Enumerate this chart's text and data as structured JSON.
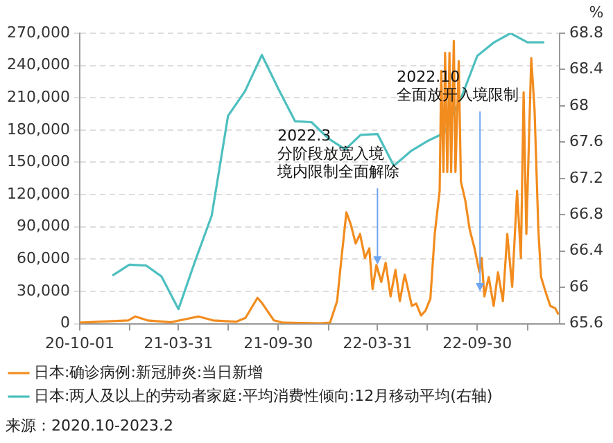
{
  "chart_data": {
    "type": "line",
    "y2label": "%",
    "xlim": [
      "2020-10-01",
      "2023-02-28"
    ],
    "xticks": [
      {
        "value": "2020-10-01",
        "label": "20-10-01"
      },
      {
        "value": "2020-12-31",
        "label": null
      },
      {
        "value": "2021-03-31",
        "label": "21-03-31"
      },
      {
        "value": "2021-06-30",
        "label": null
      },
      {
        "value": "2021-09-30",
        "label": "21-09-30"
      },
      {
        "value": "2021-12-31",
        "label": null
      },
      {
        "value": "2022-03-31",
        "label": "22-03-31"
      },
      {
        "value": "2022-06-30",
        "label": null
      },
      {
        "value": "2022-09-30",
        "label": "22-09-30"
      },
      {
        "value": "2022-12-31",
        "label": null
      }
    ],
    "ylim": [
      0,
      270000
    ],
    "yticks": [
      {
        "value": 0,
        "label": "0"
      },
      {
        "value": 30000,
        "label": "30,000"
      },
      {
        "value": 60000,
        "label": "60,000"
      },
      {
        "value": 90000,
        "label": "90,000"
      },
      {
        "value": 120000,
        "label": "120,000"
      },
      {
        "value": 150000,
        "label": "150,000"
      },
      {
        "value": 180000,
        "label": "180,000"
      },
      {
        "value": 210000,
        "label": "210,000"
      },
      {
        "value": 240000,
        "label": "240,000"
      },
      {
        "value": 270000,
        "label": "270,000"
      }
    ],
    "y2lim": [
      65.6,
      68.8
    ],
    "y2ticks": [
      65.6,
      66,
      66.4,
      66.8,
      67.2,
      67.6,
      68,
      68.4,
      68.8
    ],
    "grid": "y",
    "legend": "bottom",
    "marker": "none",
    "line_style": "solid",
    "series": [
      {
        "name": "日本:确诊病例:新冠肺炎:当日新增",
        "color": "#f28c1e",
        "x": [
          "2020-10-01",
          "2020-12-29",
          "2021-01-11",
          "2021-02-02",
          "2021-03-17",
          "2021-04-20",
          "2021-05-07",
          "2021-06-02",
          "2021-07-15",
          "2021-08-01",
          "2021-08-23",
          "2021-09-01",
          "2021-09-22",
          "2021-10-09",
          "2021-12-17",
          "2022-01-03",
          "2022-01-16",
          "2022-01-24",
          "2022-02-02",
          "2022-02-10",
          "2022-02-19",
          "2022-02-27",
          "2022-03-08",
          "2022-03-16",
          "2022-03-22",
          "2022-03-29",
          "2022-04-07",
          "2022-04-15",
          "2022-04-24",
          "2022-05-03",
          "2022-05-11",
          "2022-05-20",
          "2022-06-02",
          "2022-06-10",
          "2022-06-19",
          "2022-06-27",
          "2022-07-06",
          "2022-07-14",
          "2022-07-23",
          "2022-07-26",
          "2022-07-30",
          "2022-08-02",
          "2022-08-06",
          "2022-08-10",
          "2022-08-13",
          "2022-08-18",
          "2022-08-21",
          "2022-08-27",
          "2022-08-31",
          "2022-09-08",
          "2022-09-16",
          "2022-09-25",
          "2022-10-04",
          "2022-10-08",
          "2022-10-13",
          "2022-10-21",
          "2022-10-30",
          "2022-11-07",
          "2022-11-16",
          "2022-11-24",
          "2022-12-03",
          "2022-12-12",
          "2022-12-19",
          "2022-12-24",
          "2022-12-29",
          "2023-01-07",
          "2023-01-13",
          "2023-01-20",
          "2023-01-25",
          "2023-02-02",
          "2023-02-11",
          "2023-02-20",
          "2023-02-26"
        ],
        "values": [
          900,
          3100,
          6700,
          3100,
          1300,
          4900,
          6700,
          3100,
          1800,
          5400,
          24000,
          18700,
          3100,
          900,
          400,
          900,
          21000,
          61100,
          103500,
          92300,
          74500,
          83400,
          61100,
          70000,
          32100,
          54400,
          38800,
          56600,
          25400,
          50000,
          21000,
          45500,
          16500,
          18700,
          7600,
          12000,
          23200,
          83400,
          123500,
          235000,
          141000,
          251700,
          141000,
          251700,
          141000,
          262800,
          141000,
          244000,
          132000,
          114600,
          87800,
          70000,
          47700,
          61100,
          25400,
          43300,
          16500,
          47700,
          21000,
          83400,
          34300,
          123500,
          61100,
          215000,
          83400,
          247000,
          199500,
          87800,
          43300,
          29900,
          16500,
          14300,
          8500
        ]
      },
      {
        "name": "日本:两人及以上的劳动者家庭:平均消费性倾向:12月移动平均(右轴)",
        "color": "#4dbfbf",
        "axis": "y2",
        "x": [
          "2020-11-30",
          "2020-12-31",
          "2021-01-31",
          "2021-02-28",
          "2021-03-31",
          "2021-04-30",
          "2021-05-31",
          "2021-06-30",
          "2021-07-31",
          "2021-08-31",
          "2021-09-30",
          "2021-10-31",
          "2021-11-30",
          "2021-12-31",
          "2022-01-31",
          "2022-02-28",
          "2022-03-31",
          "2022-04-30",
          "2022-05-31",
          "2022-06-30",
          "2022-07-31",
          "2022-08-31",
          "2022-09-30",
          "2022-10-31",
          "2022-11-30",
          "2022-12-31",
          "2023-01-31"
        ],
        "values": [
          66.13,
          66.25,
          66.24,
          66.12,
          65.76,
          66.28,
          66.79,
          67.89,
          68.16,
          68.56,
          68.19,
          67.83,
          67.82,
          67.64,
          67.52,
          67.68,
          67.69,
          67.34,
          67.5,
          67.61,
          67.7,
          68.08,
          68.55,
          68.7,
          68.8,
          68.7,
          68.7
        ]
      }
    ],
    "annotations": [
      {
        "text": "2022.3 分阶段放宽入境境内限制全面解除",
        "x": "2022-03-31",
        "y": 55000
      },
      {
        "text": "2022.10 全面放开入境限制",
        "x": "2022-10-05",
        "y": 30000
      },
      "来源：2020.10-2023.2"
    ]
  }
}
